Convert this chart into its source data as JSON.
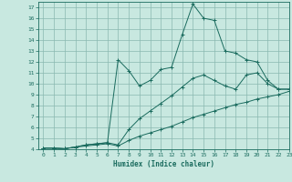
{
  "xlabel": "Humidex (Indice chaleur)",
  "bg_color": "#c8e8e0",
  "grid_color": "#8ab8b0",
  "line_color": "#1a6b5e",
  "xlim": [
    -0.5,
    23
  ],
  "ylim": [
    4,
    17.5
  ],
  "yticks": [
    4,
    5,
    6,
    7,
    8,
    9,
    10,
    11,
    12,
    13,
    14,
    15,
    16,
    17
  ],
  "xticks": [
    0,
    1,
    2,
    3,
    4,
    5,
    6,
    7,
    8,
    9,
    10,
    11,
    12,
    13,
    14,
    15,
    16,
    17,
    18,
    19,
    20,
    21,
    22,
    23
  ],
  "line1_x": [
    0,
    1,
    2,
    3,
    4,
    5,
    6,
    7,
    8,
    9,
    10,
    11,
    12,
    13,
    14,
    15,
    16,
    17,
    18,
    19,
    20,
    21,
    22,
    23
  ],
  "line1_y": [
    4.1,
    4.1,
    4.05,
    4.2,
    4.3,
    4.4,
    4.5,
    4.3,
    4.8,
    5.2,
    5.5,
    5.8,
    6.1,
    6.5,
    6.9,
    7.2,
    7.5,
    7.8,
    8.1,
    8.3,
    8.6,
    8.8,
    9.0,
    9.3
  ],
  "line2_x": [
    0,
    1,
    2,
    3,
    4,
    5,
    6,
    7,
    8,
    9,
    10,
    11,
    12,
    13,
    14,
    15,
    16,
    17,
    18,
    19,
    20,
    21,
    22,
    23
  ],
  "line2_y": [
    4.1,
    4.1,
    4.05,
    4.2,
    4.4,
    4.5,
    4.6,
    4.4,
    5.8,
    6.8,
    7.5,
    8.2,
    8.9,
    9.7,
    10.5,
    10.8,
    10.3,
    9.8,
    9.5,
    10.8,
    11.0,
    10.0,
    9.5,
    9.5
  ],
  "line3_x": [
    0,
    1,
    2,
    3,
    4,
    5,
    6,
    7,
    8,
    9,
    10,
    11,
    12,
    13,
    14,
    15,
    16,
    17,
    18,
    19,
    20,
    21,
    22,
    23
  ],
  "line3_y": [
    4.1,
    4.1,
    4.05,
    4.2,
    4.4,
    4.5,
    4.6,
    12.2,
    11.2,
    9.8,
    10.3,
    11.3,
    11.5,
    14.5,
    17.3,
    16.0,
    15.8,
    13.0,
    12.8,
    12.2,
    12.0,
    10.3,
    9.5,
    9.5
  ]
}
